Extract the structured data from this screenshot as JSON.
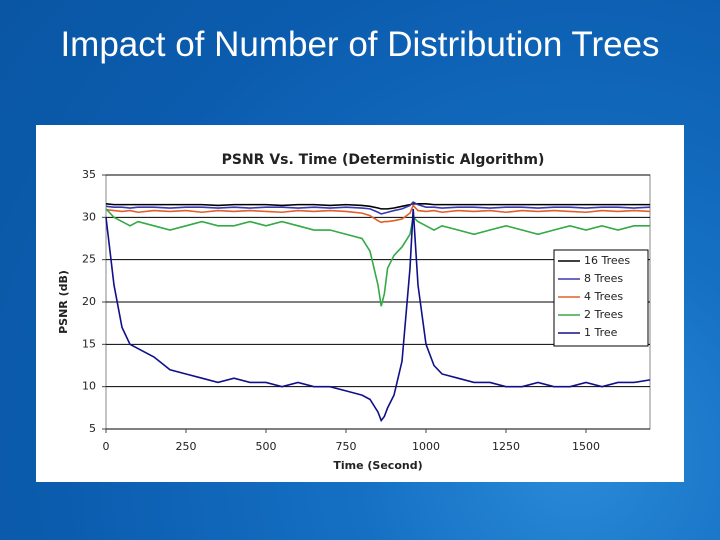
{
  "slide_title": "Impact of Number of Distribution Trees",
  "chart_data": {
    "type": "line",
    "title": "PSNR Vs. Time (Deterministic Algorithm)",
    "x_label": "Time (Second)",
    "y_label": "PSNR (dB)",
    "x": [
      0,
      25,
      50,
      75,
      100,
      150,
      200,
      250,
      300,
      350,
      400,
      450,
      500,
      550,
      600,
      650,
      700,
      750,
      800,
      825,
      850,
      860,
      870,
      880,
      900,
      925,
      950,
      960,
      975,
      1000,
      1025,
      1050,
      1100,
      1150,
      1200,
      1250,
      1300,
      1350,
      1400,
      1450,
      1500,
      1550,
      1600,
      1650,
      1700
    ],
    "series": [
      {
        "name": "16 Trees",
        "color": "#000000",
        "values": [
          31.6,
          31.5,
          31.5,
          31.5,
          31.5,
          31.5,
          31.5,
          31.5,
          31.5,
          31.4,
          31.5,
          31.5,
          31.5,
          31.4,
          31.5,
          31.5,
          31.4,
          31.5,
          31.4,
          31.3,
          31.1,
          31,
          31,
          31,
          31.1,
          31.3,
          31.5,
          31.6,
          31.6,
          31.6,
          31.5,
          31.5,
          31.5,
          31.5,
          31.5,
          31.5,
          31.5,
          31.5,
          31.5,
          31.5,
          31.5,
          31.5,
          31.5,
          31.5,
          31.5
        ]
      },
      {
        "name": "8 Trees",
        "color": "#3838b0",
        "values": [
          31.3,
          31.2,
          31.2,
          31.1,
          31.2,
          31.2,
          31.1,
          31.2,
          31.2,
          31.1,
          31.2,
          31.1,
          31.2,
          31.2,
          31.1,
          31.2,
          31.1,
          31.2,
          31.1,
          31,
          30.6,
          30.4,
          30.5,
          30.6,
          30.8,
          31,
          31.4,
          31.8,
          31.5,
          31.2,
          31.2,
          31.1,
          31.2,
          31.2,
          31.1,
          31.2,
          31.2,
          31.1,
          31.2,
          31.2,
          31.1,
          31.2,
          31.2,
          31.1,
          31.2
        ]
      },
      {
        "name": "4 Trees",
        "color": "#e0602a",
        "values": [
          30.9,
          30.8,
          30.7,
          30.8,
          30.6,
          30.8,
          30.7,
          30.8,
          30.6,
          30.8,
          30.7,
          30.8,
          30.7,
          30.6,
          30.8,
          30.7,
          30.8,
          30.7,
          30.5,
          30.2,
          29.6,
          29.4,
          29.5,
          29.5,
          29.6,
          29.8,
          30.5,
          31.4,
          30.8,
          30.7,
          30.8,
          30.6,
          30.8,
          30.7,
          30.8,
          30.6,
          30.8,
          30.7,
          30.8,
          30.7,
          30.6,
          30.8,
          30.7,
          30.8,
          30.7
        ]
      },
      {
        "name": "2 Trees",
        "color": "#33aa44",
        "values": [
          31,
          30,
          29.5,
          29,
          29.5,
          29,
          28.5,
          29,
          29.5,
          29,
          29,
          29.5,
          29,
          29.5,
          29,
          28.5,
          28.5,
          28,
          27.5,
          26,
          22,
          19.5,
          21,
          24,
          25.5,
          26.5,
          28,
          30,
          29.5,
          29,
          28.5,
          29,
          28.5,
          28,
          28.5,
          29,
          28.5,
          28,
          28.5,
          29,
          28.5,
          29,
          28.5,
          29,
          29
        ]
      },
      {
        "name": "1 Tree",
        "color": "#10108a",
        "values": [
          30,
          22,
          17,
          15,
          14.5,
          13.5,
          12,
          11.5,
          11,
          10.5,
          11,
          10.5,
          10.5,
          10,
          10.5,
          10,
          10,
          9.5,
          9,
          8.5,
          7,
          6,
          6.5,
          7.5,
          9,
          13,
          24,
          31,
          22,
          15,
          12.5,
          11.5,
          11,
          10.5,
          10.5,
          10,
          10,
          10.5,
          10,
          10,
          10.5,
          10,
          10.5,
          10.5,
          10.8
        ]
      }
    ],
    "xlim": [
      0,
      1700
    ],
    "xticks": [
      0,
      250,
      500,
      750,
      1000,
      1250,
      1500
    ],
    "ylim": [
      5,
      35
    ],
    "yticks": [
      5,
      10,
      15,
      20,
      25,
      30,
      35
    ],
    "grid": true,
    "legend": "right"
  }
}
